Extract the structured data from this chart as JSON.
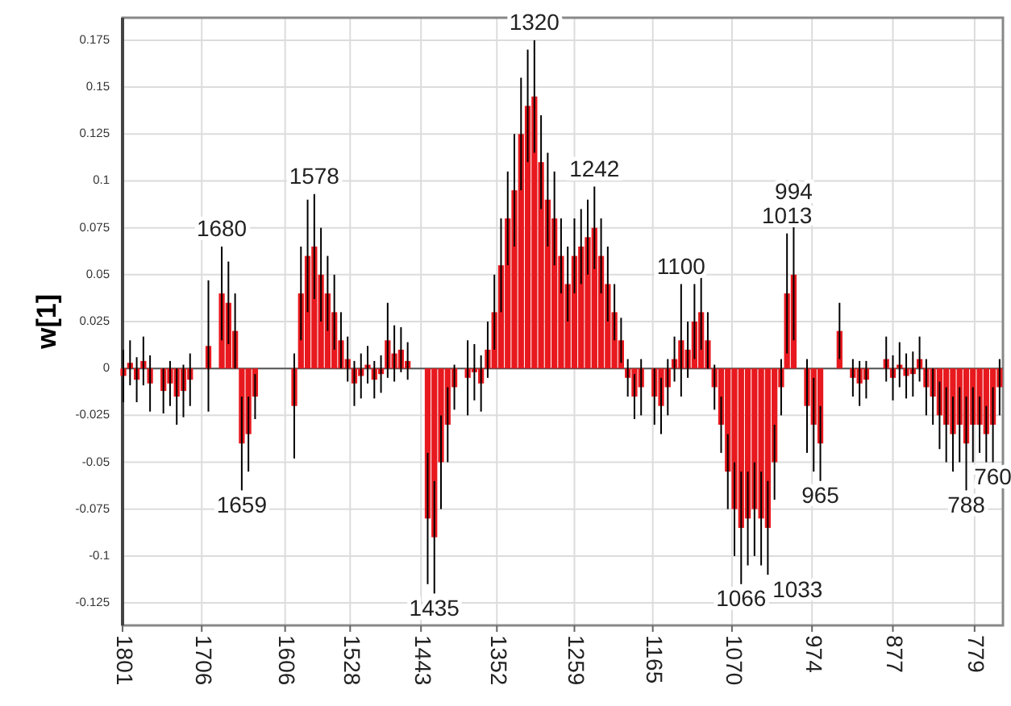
{
  "chart_data": {
    "type": "bar",
    "ylabel": "w[1]",
    "color": "#e8191e",
    "grid": true,
    "xlim": [
      1801,
      745
    ],
    "xticks": [
      1801,
      1706,
      1606,
      1528,
      1443,
      1352,
      1259,
      1165,
      1070,
      974,
      877,
      779
    ],
    "ylim": [
      -0.137,
      0.187
    ],
    "yticks": [
      -0.125,
      -0.1,
      -0.075,
      -0.05,
      -0.025,
      0,
      0.025,
      0.05,
      0.075,
      0.1,
      0.125,
      0.15,
      0.175
    ],
    "x": [
      1800,
      1792,
      1784,
      1776,
      1768,
      1752,
      1744,
      1736,
      1728,
      1720,
      1698,
      1682,
      1674,
      1666,
      1658,
      1650,
      1642,
      1595,
      1587,
      1579,
      1571,
      1563,
      1555,
      1547,
      1539,
      1531,
      1523,
      1515,
      1507,
      1499,
      1491,
      1483,
      1475,
      1467,
      1459,
      1435,
      1427,
      1419,
      1411,
      1403,
      1387,
      1379,
      1371,
      1363,
      1355,
      1347,
      1339,
      1331,
      1323,
      1315,
      1307,
      1299,
      1291,
      1283,
      1275,
      1267,
      1259,
      1251,
      1243,
      1235,
      1227,
      1219,
      1211,
      1203,
      1195,
      1187,
      1179,
      1163,
      1155,
      1147,
      1139,
      1131,
      1123,
      1115,
      1107,
      1099,
      1091,
      1083,
      1075,
      1067,
      1059,
      1051,
      1043,
      1035,
      1027,
      1019,
      1011,
      1004,
      996,
      980,
      972,
      964,
      941,
      925,
      917,
      909,
      885,
      877,
      869,
      861,
      853,
      845,
      837,
      829,
      821,
      813,
      805,
      797,
      789,
      781,
      773,
      765,
      757,
      749
    ],
    "values": [
      -0.004,
      0.003,
      -0.006,
      0.004,
      -0.008,
      -0.012,
      -0.008,
      -0.015,
      -0.012,
      -0.006,
      0.012,
      0.04,
      0.035,
      0.02,
      -0.04,
      -0.035,
      -0.015,
      -0.02,
      0.04,
      0.06,
      0.065,
      0.05,
      0.04,
      0.03,
      0.015,
      0.005,
      -0.008,
      -0.004,
      0.002,
      -0.006,
      -0.003,
      0.015,
      0.008,
      0.01,
      0.004,
      -0.08,
      -0.09,
      -0.05,
      -0.03,
      -0.01,
      -0.005,
      -0.002,
      -0.008,
      0.01,
      0.03,
      0.055,
      0.08,
      0.095,
      0.125,
      0.14,
      0.145,
      0.11,
      0.09,
      0.08,
      0.06,
      0.045,
      0.06,
      0.065,
      0.07,
      0.075,
      0.06,
      0.045,
      0.03,
      0.015,
      -0.005,
      -0.015,
      -0.01,
      -0.015,
      -0.02,
      -0.01,
      0.005,
      0.015,
      0.01,
      0.025,
      0.03,
      0.015,
      -0.01,
      -0.03,
      -0.055,
      -0.075,
      -0.085,
      -0.08,
      -0.075,
      -0.08,
      -0.085,
      -0.05,
      -0.01,
      0.04,
      0.05,
      -0.02,
      -0.03,
      -0.04,
      0.02,
      -0.005,
      -0.008,
      -0.006,
      0.005,
      -0.005,
      0.002,
      -0.004,
      -0.003,
      0.005,
      -0.01,
      -0.015,
      -0.025,
      -0.03,
      -0.035,
      -0.03,
      -0.04,
      -0.03,
      -0.03,
      -0.035,
      -0.03,
      -0.01
    ],
    "errors": [
      0.014,
      0.012,
      0.012,
      0.013,
      0.015,
      0.012,
      0.012,
      0.015,
      0.014,
      0.014,
      0.035,
      0.025,
      0.022,
      0.02,
      0.025,
      0.02,
      0.012,
      0.028,
      0.025,
      0.03,
      0.028,
      0.025,
      0.02,
      0.02,
      0.015,
      0.012,
      0.012,
      0.012,
      0.01,
      0.01,
      0.01,
      0.02,
      0.015,
      0.012,
      0.01,
      0.035,
      0.03,
      0.025,
      0.02,
      0.012,
      0.02,
      0.015,
      0.015,
      0.015,
      0.02,
      0.025,
      0.025,
      0.03,
      0.03,
      0.03,
      0.03,
      0.025,
      0.025,
      0.025,
      0.02,
      0.02,
      0.02,
      0.02,
      0.02,
      0.022,
      0.02,
      0.02,
      0.015,
      0.012,
      0.01,
      0.012,
      0.015,
      0.015,
      0.015,
      0.015,
      0.012,
      0.03,
      0.015,
      0.02,
      0.02,
      0.015,
      0.012,
      0.015,
      0.02,
      0.025,
      0.03,
      0.025,
      0.025,
      0.025,
      0.025,
      0.02,
      0.015,
      0.032,
      0.035,
      0.025,
      0.025,
      0.02,
      0.015,
      0.01,
      0.012,
      0.01,
      0.012,
      0.012,
      0.012,
      0.012,
      0.012,
      0.012,
      0.015,
      0.015,
      0.018,
      0.02,
      0.02,
      0.02,
      0.025,
      0.02,
      0.015,
      0.015,
      0.02,
      0.015
    ],
    "annotations": [
      {
        "text": "1680",
        "x": 1682,
        "y": 0.065
      },
      {
        "text": "1659",
        "x": 1658,
        "y": -0.065
      },
      {
        "text": "1578",
        "x": 1571,
        "y": 0.093
      },
      {
        "text": "1435",
        "x": 1427,
        "y": -0.12
      },
      {
        "text": "1320",
        "x": 1307,
        "y": 0.175
      },
      {
        "text": "1242",
        "x": 1235,
        "y": 0.097
      },
      {
        "text": "1100",
        "x": 1131,
        "y": 0.045
      },
      {
        "text": "1013",
        "x": 1004,
        "y": 0.072
      },
      {
        "text": "994",
        "x": 996,
        "y": 0.085
      },
      {
        "text": "965",
        "x": 964,
        "y": -0.06
      },
      {
        "text": "1066",
        "x": 1059,
        "y": -0.115
      },
      {
        "text": "1033",
        "x": 1027,
        "y": -0.11
      },
      {
        "text": "788",
        "x": 789,
        "y": -0.065
      },
      {
        "text": "760",
        "x": 757,
        "y": -0.05
      }
    ]
  }
}
